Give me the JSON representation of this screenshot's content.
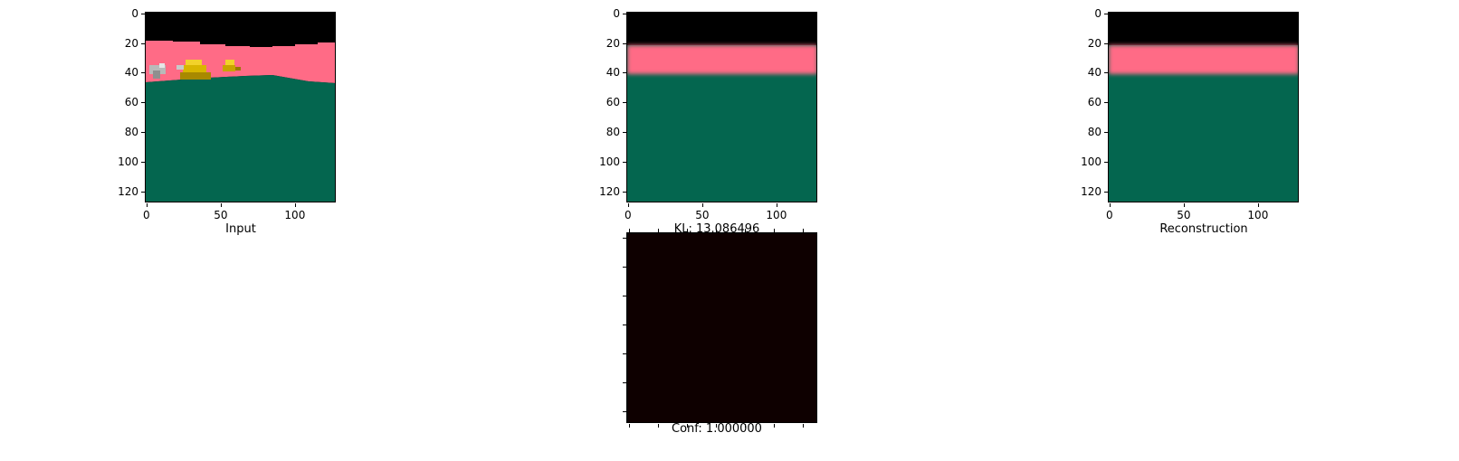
{
  "figure": {
    "panels": [
      {
        "id": "input",
        "caption": "Input",
        "x_ticks": [
          "0",
          "50",
          "100"
        ],
        "y_ticks": [
          "0",
          "20",
          "40",
          "60",
          "80",
          "100",
          "120"
        ],
        "x_range": [
          0,
          127
        ],
        "y_range": [
          0,
          127
        ]
      },
      {
        "id": "mid",
        "caption": "KL: 13.086496",
        "x_ticks": [
          "0",
          "50",
          "100"
        ],
        "y_ticks": [
          "0",
          "20",
          "40",
          "60",
          "80",
          "100",
          "120"
        ],
        "x_range": [
          0,
          127
        ],
        "y_range": [
          0,
          127
        ]
      },
      {
        "id": "reconstruction",
        "caption": "Reconstruction",
        "x_ticks": [
          "0",
          "50",
          "100"
        ],
        "y_ticks": [
          "0",
          "20",
          "40",
          "60",
          "80",
          "100",
          "120"
        ],
        "x_range": [
          0,
          127
        ],
        "y_range": [
          0,
          127
        ]
      },
      {
        "id": "confidence",
        "caption": "Conf: 1.000000"
      }
    ]
  },
  "colors": {
    "sky": "#000000",
    "pink": "#ff6b86",
    "ground": "#04664f",
    "conf_map": "#0e0000",
    "yellow": "#d9b600",
    "grey": "#b9b9b9"
  }
}
